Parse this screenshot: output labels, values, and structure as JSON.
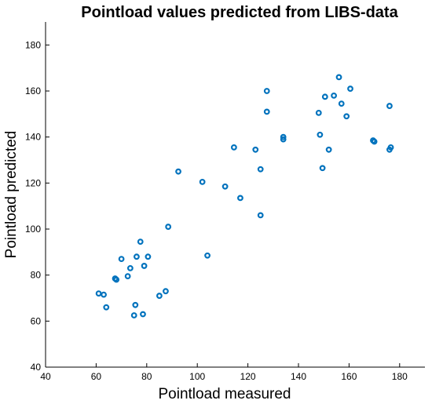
{
  "chart_data": {
    "type": "scatter",
    "title": "Pointload values predicted from LIBS-data",
    "xlabel": "Pointload measured",
    "ylabel": "Pointload predicted",
    "xlim": [
      40,
      190
    ],
    "ylim": [
      40,
      190
    ],
    "xticks": [
      40,
      60,
      80,
      100,
      120,
      140,
      160,
      180
    ],
    "yticks": [
      40,
      60,
      80,
      100,
      120,
      140,
      160,
      180
    ],
    "grid": false,
    "marker_color": "#0072BD",
    "series": [
      {
        "points": [
          [
            61,
            72
          ],
          [
            63,
            71.5
          ],
          [
            64,
            66
          ],
          [
            67.5,
            78.5
          ],
          [
            68,
            78
          ],
          [
            70,
            87
          ],
          [
            72.5,
            79.5
          ],
          [
            73.5,
            83
          ],
          [
            75,
            62.5
          ],
          [
            75.5,
            67
          ],
          [
            76,
            88
          ],
          [
            77.5,
            94.5
          ],
          [
            78.5,
            63
          ],
          [
            79,
            84
          ],
          [
            80.5,
            88
          ],
          [
            85,
            71
          ],
          [
            87.5,
            73
          ],
          [
            88.5,
            101
          ],
          [
            92.5,
            125
          ],
          [
            102,
            120.5
          ],
          [
            104,
            88.5
          ],
          [
            111,
            118.5
          ],
          [
            114.5,
            135.5
          ],
          [
            117,
            113.5
          ],
          [
            123,
            134.5
          ],
          [
            125,
            126
          ],
          [
            125,
            106
          ],
          [
            127.5,
            160
          ],
          [
            127.5,
            151
          ],
          [
            134,
            140
          ],
          [
            134,
            139
          ],
          [
            148,
            150.5
          ],
          [
            148.5,
            141
          ],
          [
            149.5,
            126.5
          ],
          [
            150.5,
            157.5
          ],
          [
            152,
            134.5
          ],
          [
            154,
            158
          ],
          [
            156,
            166
          ],
          [
            157,
            154.5
          ],
          [
            159,
            149
          ],
          [
            160.5,
            161
          ],
          [
            169.5,
            138.5
          ],
          [
            170,
            138
          ],
          [
            176,
            153.5
          ],
          [
            176,
            134.5
          ],
          [
            176.5,
            135.5
          ]
        ]
      }
    ]
  }
}
